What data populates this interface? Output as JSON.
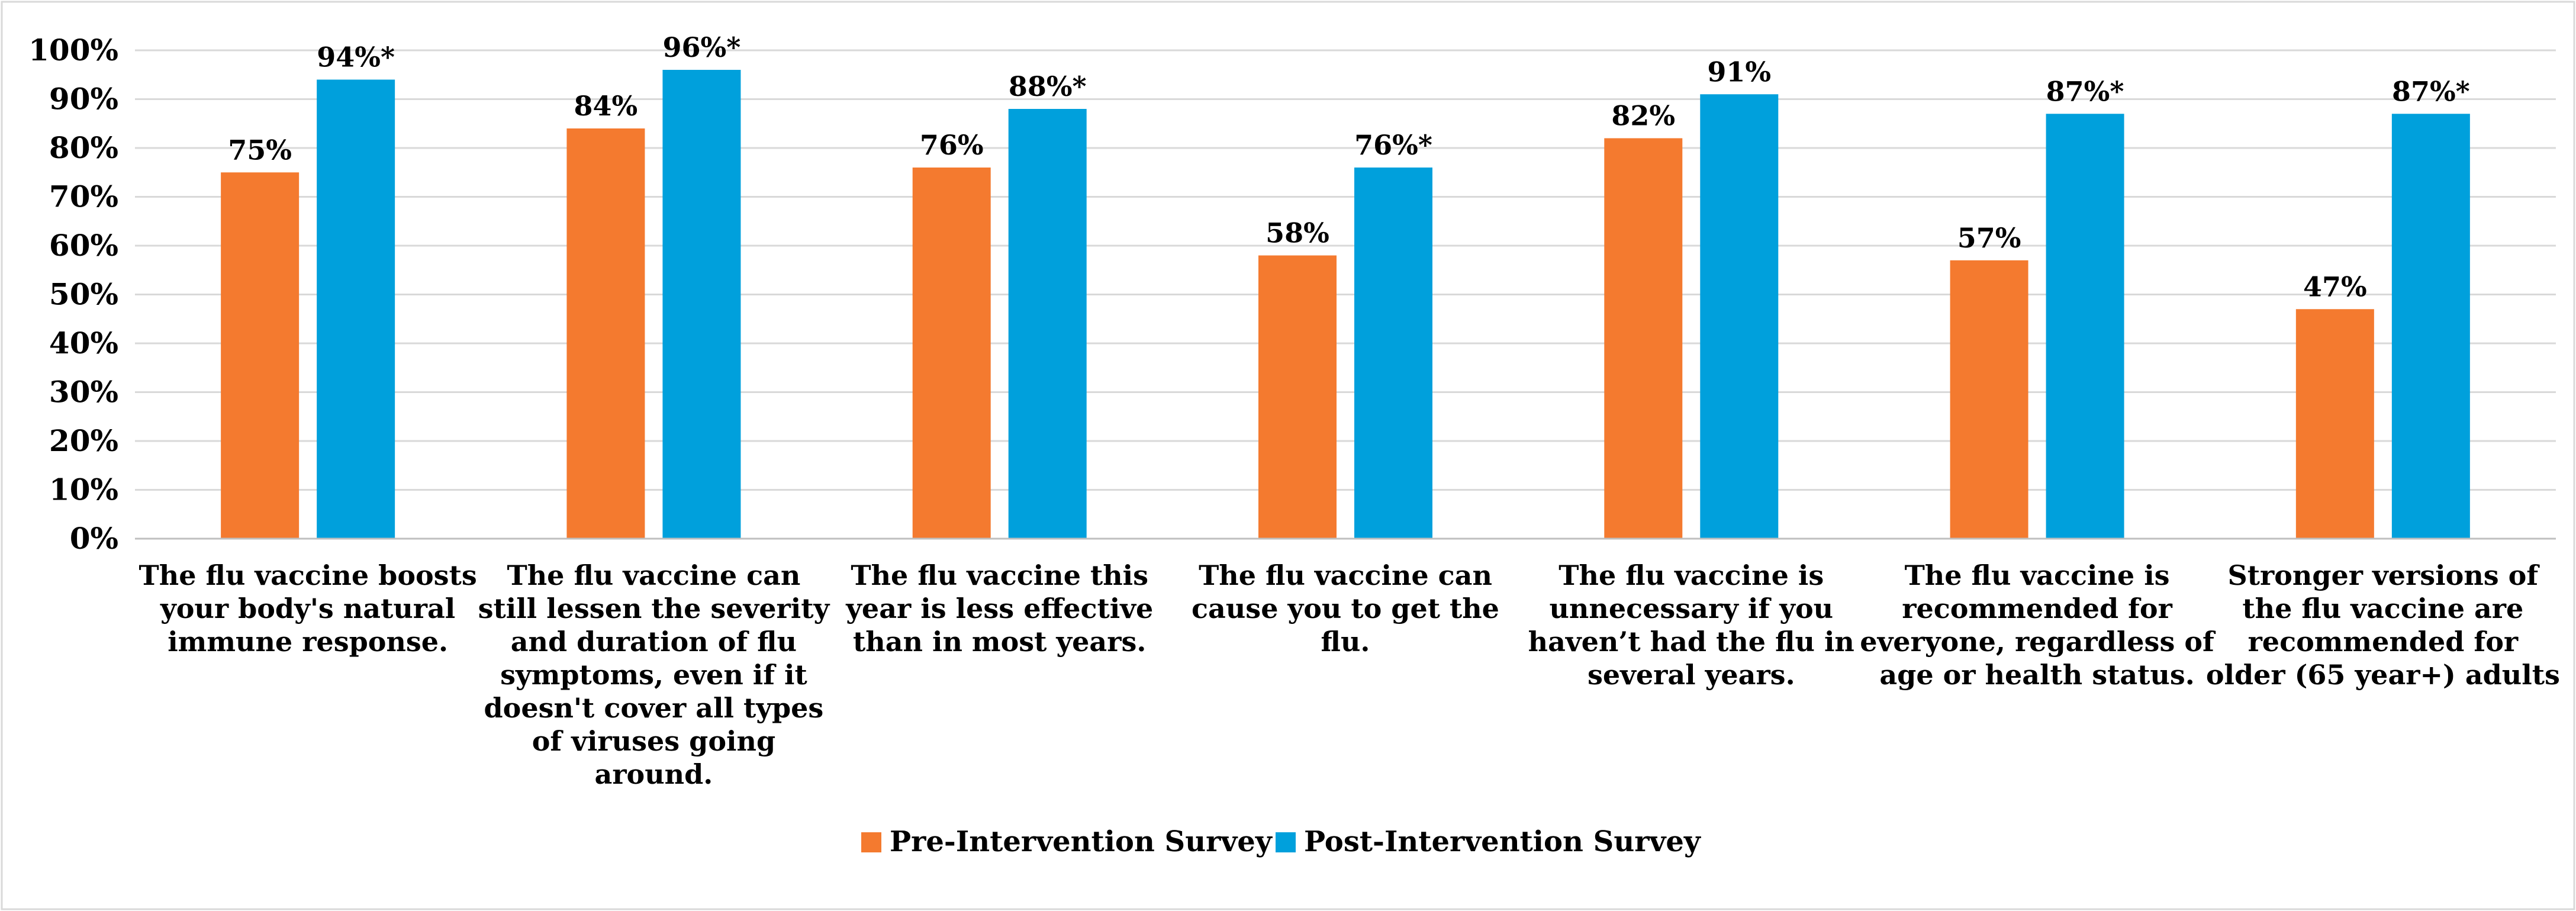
{
  "chart_data": {
    "type": "bar",
    "title": "",
    "xlabel": "",
    "ylabel": "",
    "ylim": [
      0,
      100
    ],
    "yticks": [
      0,
      10,
      20,
      30,
      40,
      50,
      60,
      70,
      80,
      90,
      100
    ],
    "ytick_labels": [
      "0%",
      "10%",
      "20%",
      "30%",
      "40%",
      "50%",
      "60%",
      "70%",
      "80%",
      "90%",
      "100%"
    ],
    "grid": true,
    "legend_position": "bottom",
    "categories": [
      [
        "The flu vaccine boosts",
        "your body's natural",
        "immune response."
      ],
      [
        "The flu vaccine can",
        "still lessen the severity",
        "and duration of flu",
        "symptoms, even if it",
        "doesn't cover all types",
        "of viruses going",
        "around."
      ],
      [
        "The flu vaccine this",
        "year is less effective",
        "than in most years."
      ],
      [
        "The flu vaccine can",
        "cause you to get the",
        "flu."
      ],
      [
        "The flu vaccine is",
        "unnecessary if you",
        "haven’t had the flu in",
        "several years."
      ],
      [
        "The flu vaccine is",
        "recommended for",
        "everyone, regardless of",
        "age or health status."
      ],
      [
        "Stronger versions of",
        "the flu vaccine are",
        "recommended for",
        "older (65 year+) adults"
      ]
    ],
    "series": [
      {
        "name": "Pre-Intervention Survey",
        "color": "#f47a2f",
        "values": [
          75,
          84,
          76,
          58,
          82,
          57,
          47
        ],
        "labels": [
          "75%",
          "84%",
          "76%",
          "58%",
          "82%",
          "57%",
          "47%"
        ]
      },
      {
        "name": "Post-Intervention Survey",
        "color": "#00a0dc",
        "values": [
          94,
          96,
          88,
          76,
          91,
          87,
          87
        ],
        "labels": [
          "94%*",
          "96%*",
          "88%*",
          "76%*",
          "91%",
          "87%*",
          "87%*"
        ]
      }
    ]
  }
}
